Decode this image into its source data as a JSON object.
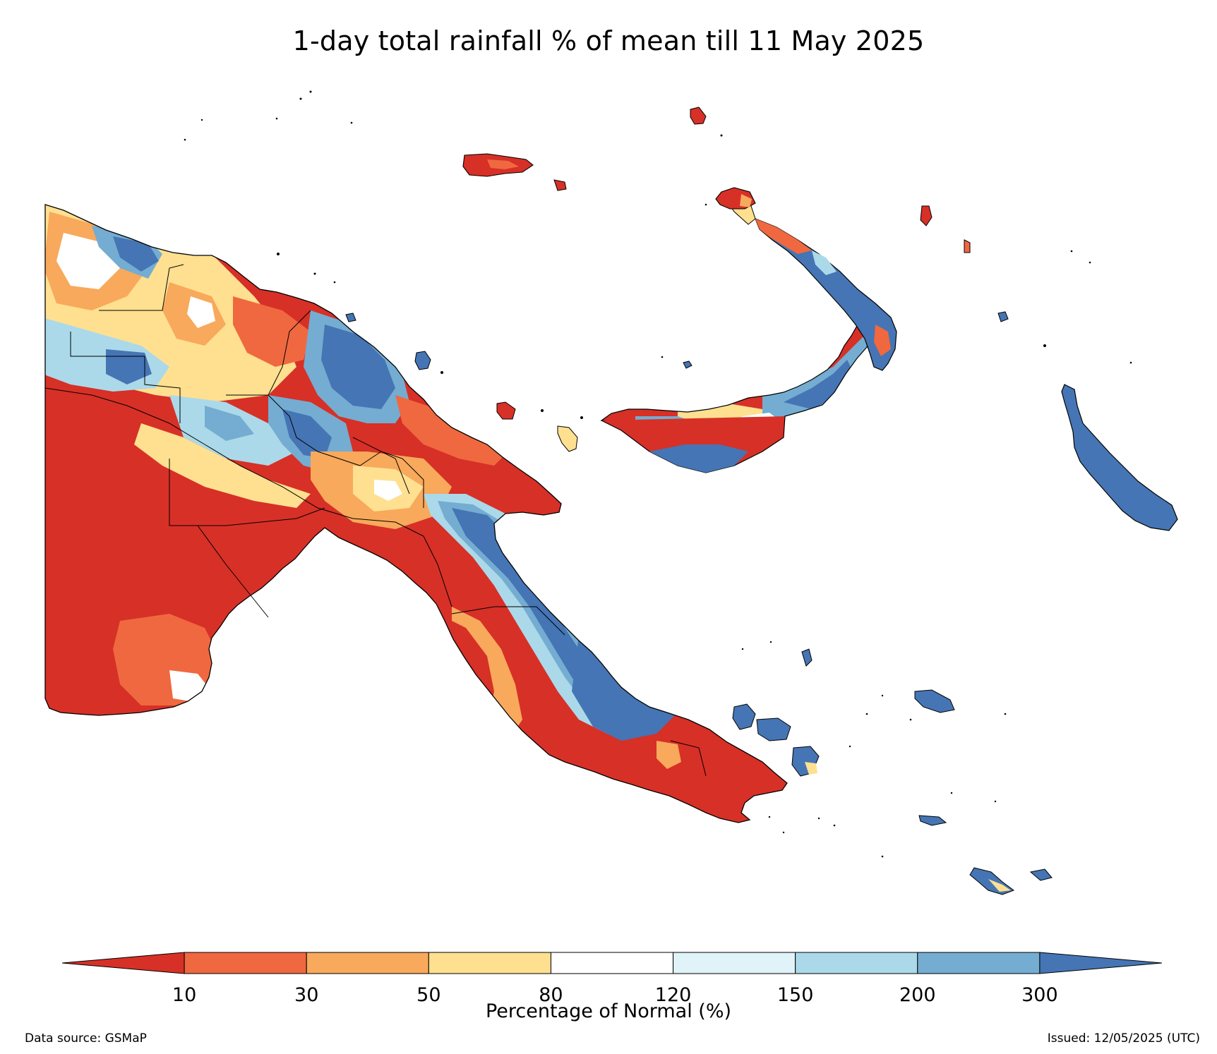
{
  "title": "1-day total rainfall % of mean till 11 May 2025",
  "colorbar": {
    "title": "Percentage of Normal (%)",
    "tick_labels": [
      "10",
      "30",
      "50",
      "80",
      "120",
      "150",
      "200",
      "300"
    ],
    "colors": [
      "#d73027",
      "#f0683f",
      "#f8a95b",
      "#fee090",
      "#ffffff",
      "#e0f3f8",
      "#abd9e9",
      "#74add1",
      "#4575b4"
    ],
    "extend": "both"
  },
  "legend": {
    "bins": [
      {
        "range": "<10",
        "color": "#d73027"
      },
      {
        "range": "10-30",
        "color": "#f0683f"
      },
      {
        "range": "30-50",
        "color": "#f8a95b"
      },
      {
        "range": "50-80",
        "color": "#fee090"
      },
      {
        "range": "80-120",
        "color": "#ffffff"
      },
      {
        "range": "120-150",
        "color": "#e0f3f8"
      },
      {
        "range": "150-200",
        "color": "#abd9e9"
      },
      {
        "range": "200-300",
        "color": "#74add1"
      },
      {
        "range": ">300",
        "color": "#4575b4"
      }
    ]
  },
  "footer": {
    "data_source": "Data source: GSMaP",
    "issued": "Issued: 12/05/2025 (UTC)"
  },
  "map": {
    "region": "Papua New Guinea",
    "border_color": "#000000",
    "ocean_color": "#ffffff"
  }
}
